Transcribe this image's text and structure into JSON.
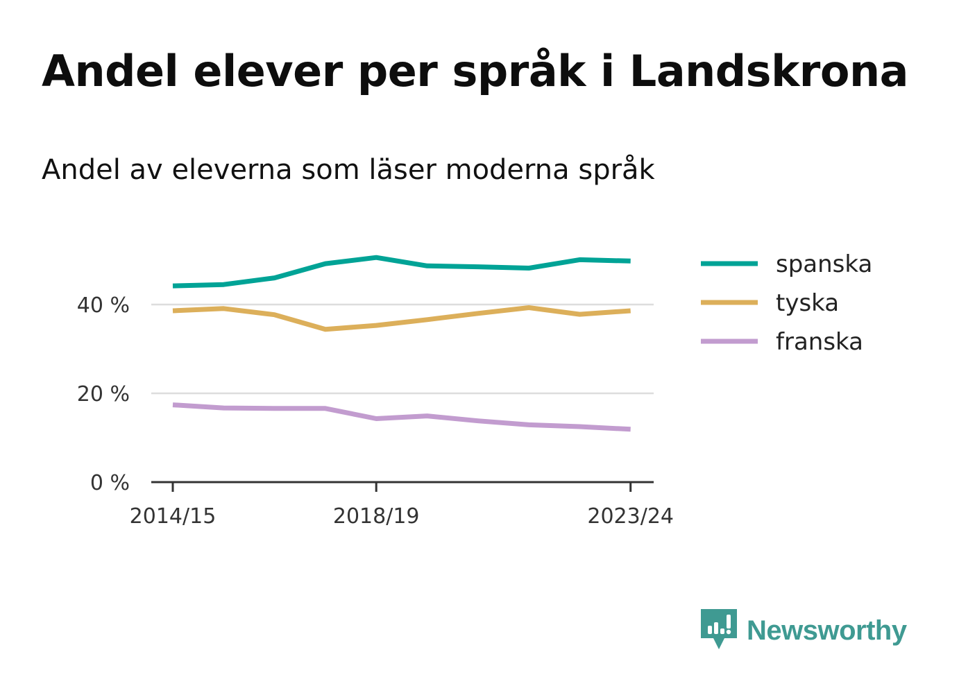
{
  "title": "Andel elever per språk i Landskrona",
  "subtitle": "Andel av eleverna som läser moderna språk",
  "brand": {
    "name": "Newsworthy",
    "icon": "newsworthy-logo-icon",
    "color": "#3f9a92"
  },
  "chart_data": {
    "type": "line",
    "title": "Andel elever per språk i Landskrona",
    "subtitle": "Andel av eleverna som läser moderna språk",
    "xlabel": "",
    "ylabel": "",
    "x": [
      "2014/15",
      "2015/16",
      "2016/17",
      "2017/18",
      "2018/19",
      "2019/20",
      "2020/21",
      "2021/22",
      "2022/23",
      "2023/24"
    ],
    "x_tick_labels": [
      "2014/15",
      "2018/19",
      "2023/24"
    ],
    "y_ticks": [
      0,
      20,
      40
    ],
    "y_tick_labels": [
      "0 %",
      "20 %",
      "40 %"
    ],
    "ylim": [
      0,
      52
    ],
    "grid": true,
    "legend": "right",
    "series": [
      {
        "name": "spanska",
        "color": "#00a396",
        "values": [
          44.2,
          44.5,
          46.0,
          49.2,
          50.6,
          48.7,
          48.5,
          48.2,
          50.1,
          49.8
        ]
      },
      {
        "name": "tyska",
        "color": "#dcaf5a",
        "values": [
          38.6,
          39.1,
          37.7,
          34.4,
          35.3,
          36.6,
          38.0,
          39.3,
          37.8,
          38.6
        ]
      },
      {
        "name": "franska",
        "color": "#c29ccf",
        "values": [
          17.4,
          16.7,
          16.6,
          16.6,
          14.3,
          14.9,
          13.8,
          12.9,
          12.5,
          11.9
        ]
      }
    ]
  }
}
